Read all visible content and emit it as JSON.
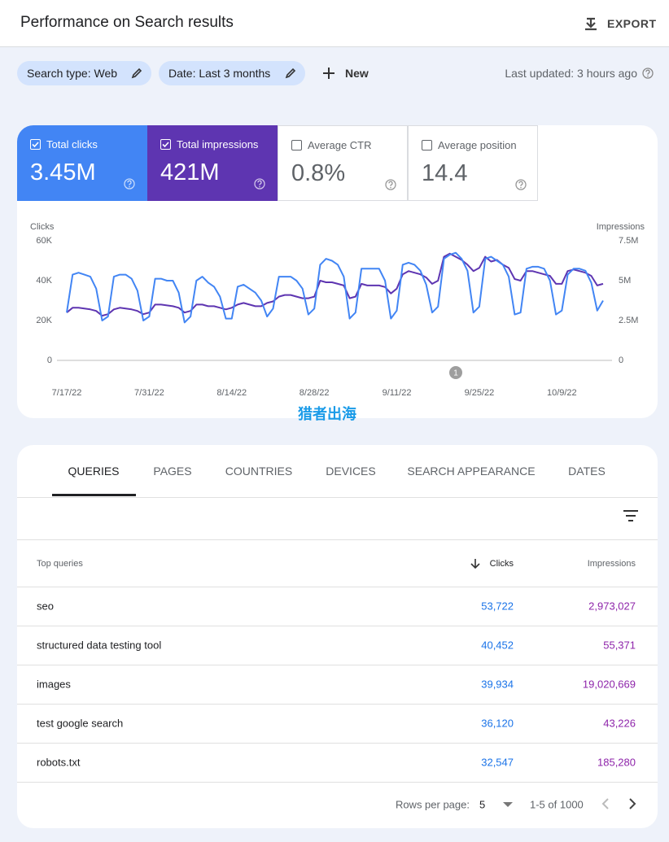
{
  "header": {
    "title": "Performance on Search results",
    "export": "EXPORT"
  },
  "filters": {
    "chips": [
      "Search type: Web",
      "Date: Last 3 months"
    ],
    "new": "New",
    "last_updated": "Last updated: 3 hours ago"
  },
  "metrics": [
    {
      "label": "Average CTR",
      "value": "0.8%",
      "checked": false
    },
    {
      "label": "Average position",
      "value": "14.4",
      "checked": false
    }
  ],
  "chart_data": {
    "type": "line",
    "y_label": "Clicks",
    "y2_label": "Impressions",
    "categories": [
      "7/17/22",
      null,
      null,
      null,
      null,
      null,
      null,
      null,
      null,
      null,
      null,
      null,
      null,
      null,
      "7/31/22",
      null,
      null,
      null,
      null,
      null,
      null,
      null,
      null,
      null,
      null,
      null,
      null,
      null,
      "8/14/22",
      null,
      null,
      null,
      null,
      null,
      null,
      null,
      null,
      null,
      null,
      null,
      null,
      null,
      "8/28/22",
      null,
      null,
      null,
      null,
      null,
      null,
      null,
      null,
      null,
      null,
      null,
      null,
      null,
      "9/11/22",
      null,
      null,
      null,
      null,
      null,
      null,
      null,
      null,
      null,
      null,
      null,
      null,
      null,
      "9/25/22",
      null,
      null,
      null,
      null,
      null,
      null,
      null,
      null,
      null,
      null,
      null,
      null,
      null,
      "10/9/22",
      null,
      null,
      null,
      null,
      null,
      null,
      null
    ],
    "series": [
      {
        "name": "Total clicks",
        "total": "3.45M",
        "checked": true,
        "color": "#4285f4",
        "values": [
          24,
          43,
          44,
          43,
          42,
          36,
          20,
          22,
          42,
          43,
          43,
          41,
          35,
          20,
          22,
          41,
          41,
          40,
          40,
          34,
          19,
          22,
          40,
          42,
          39,
          37,
          32,
          21,
          21,
          37,
          38,
          36,
          34,
          30,
          22,
          26,
          42,
          42,
          42,
          40,
          36,
          23,
          26,
          48,
          51,
          50,
          48,
          42,
          21,
          24,
          46,
          46,
          46,
          46,
          40,
          21,
          25,
          48,
          49,
          48,
          45,
          38,
          24,
          27,
          51,
          53,
          54,
          51,
          45,
          24,
          27,
          51,
          52,
          50,
          48,
          42,
          23,
          24,
          46,
          47,
          47,
          46,
          40,
          23,
          25,
          43,
          46,
          46,
          45,
          39,
          25,
          30
        ]
      },
      {
        "name": "Total impressions",
        "total": "421M",
        "checked": true,
        "color": "#5e35b1",
        "axis": "y2",
        "values": [
          3.0,
          3.3,
          3.3,
          3.25,
          3.2,
          3.1,
          2.8,
          2.9,
          3.2,
          3.3,
          3.25,
          3.2,
          3.1,
          2.9,
          3.0,
          3.5,
          3.5,
          3.45,
          3.4,
          3.3,
          3.0,
          3.1,
          3.5,
          3.5,
          3.4,
          3.4,
          3.3,
          3.2,
          3.3,
          3.5,
          3.6,
          3.5,
          3.4,
          3.4,
          3.6,
          3.7,
          4.0,
          4.1,
          4.1,
          4.0,
          3.9,
          3.9,
          4.0,
          5.0,
          4.9,
          4.9,
          4.8,
          4.7,
          3.9,
          4.0,
          4.8,
          4.7,
          4.7,
          4.7,
          4.6,
          4.2,
          4.5,
          5.4,
          5.6,
          5.5,
          5.4,
          5.2,
          4.8,
          5.0,
          6.5,
          6.7,
          6.5,
          6.3,
          6.0,
          5.6,
          5.8,
          6.5,
          6.2,
          6.3,
          6.0,
          5.8,
          5.1,
          5.0,
          5.6,
          5.6,
          5.5,
          5.4,
          5.3,
          4.8,
          4.8,
          5.6,
          5.7,
          5.6,
          5.5,
          5.3,
          4.7,
          4.8
        ]
      }
    ],
    "ylim": [
      0,
      60
    ],
    "yticks": [
      0,
      {
        "value": 20,
        "label": "20K"
      },
      {
        "value": 40,
        "label": "40K"
      },
      {
        "value": 60,
        "label": "60K"
      }
    ],
    "y2lim": [
      0,
      7.5
    ],
    "y2ticks": [
      0,
      {
        "value": 2.5,
        "label": "2.5M"
      },
      {
        "value": 5,
        "label": "5M"
      },
      {
        "value": 7.5,
        "label": "7.5M"
      }
    ],
    "grid": false,
    "annotation": "1"
  },
  "watermark": "猎者出海",
  "tabs": [
    "QUERIES",
    "PAGES",
    "COUNTRIES",
    "DEVICES",
    "SEARCH APPEARANCE",
    "DATES"
  ],
  "table": {
    "header": [
      "Top queries",
      "Clicks",
      "Impressions"
    ],
    "rows": [
      [
        "seo",
        "53,722",
        "2,973,027"
      ],
      [
        "structured data testing tool",
        "40,452",
        "55,371"
      ],
      [
        "images",
        "39,934",
        "19,020,669"
      ],
      [
        "test google search",
        "36,120",
        "43,226"
      ],
      [
        "robots.txt",
        "32,547",
        "185,280"
      ]
    ]
  },
  "footer": {
    "rows_per_page": "Rows per page:",
    "page_size": "5",
    "range": "1-5 of 1000"
  }
}
